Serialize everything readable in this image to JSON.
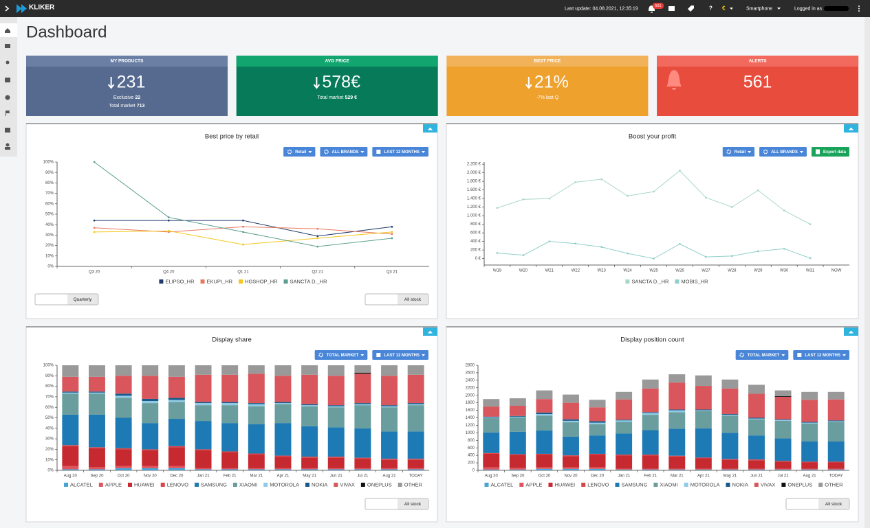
{
  "header": {
    "logo": "KLIKER",
    "last_update": "Last update: 04.08.2021, 12:35:19",
    "alerts_badge": "561",
    "help": "?",
    "currency": "€",
    "device": "Smartphone",
    "logged_in": "Logged in as"
  },
  "page_title": "Dashboard",
  "kpis": [
    {
      "title": "MY PRODUCTS",
      "value": "231",
      "arrow": "down",
      "color": "#566a8f",
      "header_color": "#6b7fa5",
      "details": [
        {
          "label": "Exclusive",
          "value": "22"
        },
        {
          "label": "Total market",
          "value": "713"
        }
      ]
    },
    {
      "title": "AVG PRICE",
      "value": "578€",
      "arrow": "down",
      "color": "#077a59",
      "header_color": "#12a56f",
      "details": [
        {
          "label": "Total market",
          "value": "529 €"
        }
      ]
    },
    {
      "title": "BEST PRICE",
      "value": "21%",
      "arrow": "down",
      "color": "#efa12d",
      "header_color": "#f2b259",
      "details": [
        {
          "label": "-7% last Q"
        }
      ]
    },
    {
      "title": "ALERTS",
      "value": "561",
      "icon": "bell",
      "color": "#e84c3d",
      "header_color": "#f16a5d",
      "details": []
    }
  ],
  "chart_data": [
    {
      "type": "line",
      "title": "Best price by retail",
      "buttons": [
        {
          "label": "Retail",
          "icon": "gear",
          "color": "#4a86d8"
        },
        {
          "label": "ALL BRANDS",
          "icon": "gear",
          "color": "#4a86d8"
        },
        {
          "label": "LAST 12 MONTHS",
          "icon": "calendar",
          "color": "#4a86d8"
        }
      ],
      "categories": [
        "Q3 20",
        "Q4 20",
        "Q1 21",
        "Q2 21",
        "Q3 21"
      ],
      "series": [
        {
          "name": "ELIPSO_HR",
          "color": "#1f3a6b",
          "values": [
            44,
            44,
            44,
            29,
            38
          ]
        },
        {
          "name": "EKUPI_HR",
          "color": "#e8795f",
          "values": [
            37,
            33,
            38,
            36,
            31
          ]
        },
        {
          "name": "HGSHOP_HR",
          "color": "#f5c61a",
          "values": [
            33,
            34,
            21,
            27,
            33
          ]
        },
        {
          "name": "SANCTA D._HR",
          "color": "#5a9e8f",
          "values": [
            100,
            47,
            33,
            19,
            27
          ]
        }
      ],
      "ylim": [
        0,
        100
      ],
      "yticks": [
        {
          "value": 0,
          "label": "0%"
        },
        {
          "value": 10,
          "label": "10%"
        },
        {
          "value": 20,
          "label": "20%"
        },
        {
          "value": 30,
          "label": "30%"
        },
        {
          "value": 40,
          "label": "40%"
        },
        {
          "value": 50,
          "label": "50%"
        },
        {
          "value": 60,
          "label": "60%"
        },
        {
          "value": 70,
          "label": "70%"
        },
        {
          "value": 80,
          "label": "80%"
        },
        {
          "value": 90,
          "label": "90%"
        },
        {
          "value": 100,
          "label": "100%"
        }
      ],
      "grid": false,
      "controls": {
        "left": "Quarterly",
        "right": "All stock"
      }
    },
    {
      "type": "line",
      "title": "Boost your profit",
      "buttons": [
        {
          "label": "Retail",
          "icon": "gear",
          "color": "#4a86d8"
        },
        {
          "label": "ALL BRANDS",
          "icon": "gear",
          "color": "#4a86d8"
        },
        {
          "label": "Export data",
          "icon": "export",
          "color": "#1aa35a"
        }
      ],
      "categories": [
        "W19",
        "W20",
        "W21",
        "W22",
        "W23",
        "W24",
        "W25",
        "W26",
        "W27",
        "W28",
        "W29",
        "W30",
        "W31",
        "NOW"
      ],
      "series": [
        {
          "name": "SANCTA D._HR",
          "color": "#a9d8c4",
          "values": [
            1180,
            1380,
            1400,
            1780,
            1850,
            1460,
            1560,
            2050,
            1420,
            1200,
            1590,
            1120,
            800,
            null
          ]
        },
        {
          "name": "MOBIS_HR",
          "color": "#8fcfc9",
          "values": [
            130,
            80,
            400,
            350,
            270,
            120,
            0,
            340,
            40,
            60,
            170,
            230,
            10,
            null
          ]
        }
      ],
      "ylim": [
        -150,
        2250
      ],
      "yticks": [
        {
          "value": 0,
          "label": "0 €"
        },
        {
          "value": 200,
          "label": "200 €"
        },
        {
          "value": 400,
          "label": "400 €"
        },
        {
          "value": 600,
          "label": "600 €"
        },
        {
          "value": 800,
          "label": "800 €"
        },
        {
          "value": 1000,
          "label": "1.000 €"
        },
        {
          "value": 1200,
          "label": "1.200 €"
        },
        {
          "value": 1400,
          "label": "1.400 €"
        },
        {
          "value": 1600,
          "label": "1.600 €"
        },
        {
          "value": 1800,
          "label": "1.800 €"
        },
        {
          "value": 2000,
          "label": "2.000 €"
        },
        {
          "value": 2200,
          "label": "2.200 €"
        }
      ],
      "grid": false
    },
    {
      "type": "stacked_bar",
      "title": "Display share",
      "buttons": [
        {
          "label": "TOTAL MARKET",
          "icon": "gear",
          "color": "#4a86d8"
        },
        {
          "label": "LAST 12 MONTHS",
          "icon": "calendar",
          "color": "#4a86d8"
        }
      ],
      "categories": [
        "Aug 20",
        "Sep 20",
        "Oct 20",
        "Nov 20",
        "Dec 20",
        "Jan 21",
        "Feb 21",
        "Mar 21",
        "Apr 21",
        "May 21",
        "Jun 21",
        "Jul 21",
        "Aug 21",
        "TODAY"
      ],
      "series": [
        {
          "name": "ALCATEL",
          "color": "#4aa3d6",
          "values": [
            1,
            1,
            2,
            2,
            2,
            1,
            1,
            1,
            1,
            1,
            1,
            1,
            1,
            1
          ]
        },
        {
          "name": "APPLE",
          "color": "#e0565e",
          "values": [
            3,
            2,
            2,
            2,
            2,
            1,
            1,
            1,
            1,
            1,
            1,
            1,
            1,
            1
          ]
        },
        {
          "name": "HUAWEI",
          "color": "#c62a30",
          "values": [
            19,
            18,
            16,
            15,
            18,
            17,
            15,
            13,
            11,
            10,
            10,
            9,
            8,
            8
          ]
        },
        {
          "name": "LENOVO",
          "color": "#d8454a",
          "values": [
            1,
            1,
            1,
            1,
            1,
            1,
            1,
            1,
            1,
            1,
            1,
            1,
            1,
            1
          ]
        },
        {
          "name": "SAMSUNG",
          "color": "#1d7ab4",
          "values": [
            29,
            31,
            29,
            25,
            26,
            27,
            27,
            28,
            31,
            29,
            28,
            28,
            26,
            26
          ]
        },
        {
          "name": "XIAOMI",
          "color": "#6a9d9d",
          "values": [
            20,
            20,
            19,
            19,
            16,
            15,
            17,
            17,
            18,
            19,
            19,
            22,
            23,
            25
          ]
        },
        {
          "name": "MOTOROLA",
          "color": "#8fcbe6",
          "values": [
            1,
            1,
            2,
            2,
            2,
            2,
            2,
            2,
            1,
            1,
            1,
            1,
            1,
            1
          ]
        },
        {
          "name": "NOKIA",
          "color": "#1a5a8a",
          "values": [
            1,
            1,
            2,
            2,
            2,
            1,
            1,
            1,
            1,
            1,
            1,
            1,
            1,
            1
          ]
        },
        {
          "name": "VIVAX",
          "color": "#d9575c",
          "values": [
            14,
            14,
            17,
            22,
            20,
            26,
            26,
            28,
            25,
            28,
            28,
            28,
            28,
            27
          ]
        },
        {
          "name": "ONEPLUS",
          "color": "#111111",
          "values": [
            0,
            0,
            0,
            0,
            0,
            0,
            0,
            0,
            0,
            0,
            0,
            1,
            0,
            0
          ]
        },
        {
          "name": "OTHER",
          "color": "#999999",
          "values": [
            11,
            11,
            10,
            10,
            11,
            9,
            9,
            8,
            10,
            9,
            10,
            7,
            10,
            9
          ]
        }
      ],
      "ylim": [
        0,
        100
      ],
      "yticks": [
        {
          "value": 0,
          "label": "0%"
        },
        {
          "value": 10,
          "label": "10%"
        },
        {
          "value": 20,
          "label": "20%"
        },
        {
          "value": 30,
          "label": "30%"
        },
        {
          "value": 40,
          "label": "40%"
        },
        {
          "value": 50,
          "label": "50%"
        },
        {
          "value": 60,
          "label": "60%"
        },
        {
          "value": 70,
          "label": "70%"
        },
        {
          "value": 80,
          "label": "80%"
        },
        {
          "value": 90,
          "label": "90%"
        },
        {
          "value": 100,
          "label": "100%"
        }
      ],
      "grid": false,
      "controls": {
        "right": "All stock"
      }
    },
    {
      "type": "stacked_bar",
      "title": "Display position count",
      "buttons": [
        {
          "label": "TOTAL MARKET",
          "icon": "gear",
          "color": "#4a86d8"
        },
        {
          "label": "LAST 12 MONTHS",
          "icon": "calendar",
          "color": "#4a86d8"
        }
      ],
      "categories": [
        "Aug 20",
        "Sep 20",
        "Oct 20",
        "Nov 20",
        "Dec 20",
        "Jan 21",
        "Feb 21",
        "Mar 21",
        "Apr 21",
        "May 21",
        "Jun 21",
        "Jul 21",
        "Aug 21",
        "TODAY"
      ],
      "series": [
        {
          "name": "ALCATEL",
          "color": "#4aa3d6",
          "values": [
            20,
            20,
            40,
            40,
            40,
            20,
            20,
            20,
            20,
            20,
            20,
            20,
            20,
            20
          ]
        },
        {
          "name": "APPLE",
          "color": "#e0565e",
          "values": [
            60,
            40,
            40,
            40,
            40,
            20,
            20,
            20,
            20,
            20,
            20,
            20,
            20,
            20
          ]
        },
        {
          "name": "HUAWEI",
          "color": "#c62a30",
          "values": [
            360,
            350,
            340,
            300,
            340,
            360,
            360,
            330,
            280,
            240,
            230,
            190,
            170,
            170
          ]
        },
        {
          "name": "LENOVO",
          "color": "#d8454a",
          "values": [
            20,
            20,
            20,
            20,
            20,
            20,
            20,
            20,
            20,
            20,
            20,
            20,
            20,
            20
          ]
        },
        {
          "name": "SAMSUNG",
          "color": "#1d7ab4",
          "values": [
            550,
            600,
            620,
            500,
            490,
            560,
            650,
            720,
            780,
            700,
            640,
            600,
            540,
            540
          ]
        },
        {
          "name": "XIAOMI",
          "color": "#6a9d9d",
          "values": [
            380,
            380,
            400,
            380,
            300,
            310,
            410,
            440,
            460,
            460,
            430,
            470,
            480,
            520
          ]
        },
        {
          "name": "MOTOROLA",
          "color": "#8fcbe6",
          "values": [
            20,
            20,
            40,
            40,
            40,
            40,
            50,
            50,
            20,
            20,
            20,
            20,
            20,
            20
          ]
        },
        {
          "name": "NOKIA",
          "color": "#1a5a8a",
          "values": [
            20,
            20,
            40,
            40,
            40,
            20,
            20,
            20,
            20,
            20,
            20,
            20,
            20,
            20
          ]
        },
        {
          "name": "VIVAX",
          "color": "#d9575c",
          "values": [
            270,
            270,
            360,
            440,
            370,
            540,
            630,
            720,
            630,
            680,
            640,
            600,
            590,
            560
          ]
        },
        {
          "name": "ONEPLUS",
          "color": "#111111",
          "values": [
            0,
            0,
            0,
            0,
            0,
            0,
            0,
            0,
            0,
            0,
            0,
            20,
            0,
            0
          ]
        },
        {
          "name": "OTHER",
          "color": "#999999",
          "values": [
            200,
            200,
            230,
            220,
            200,
            200,
            240,
            220,
            280,
            240,
            240,
            150,
            210,
            200
          ]
        }
      ],
      "ylim": [
        0,
        2800
      ],
      "yticks": [
        0,
        200,
        400,
        600,
        800,
        1000,
        1200,
        1400,
        1600,
        1800,
        2000,
        2200,
        2400,
        2600,
        2800
      ],
      "grid": false,
      "controls": {
        "right": "All stock"
      }
    }
  ]
}
